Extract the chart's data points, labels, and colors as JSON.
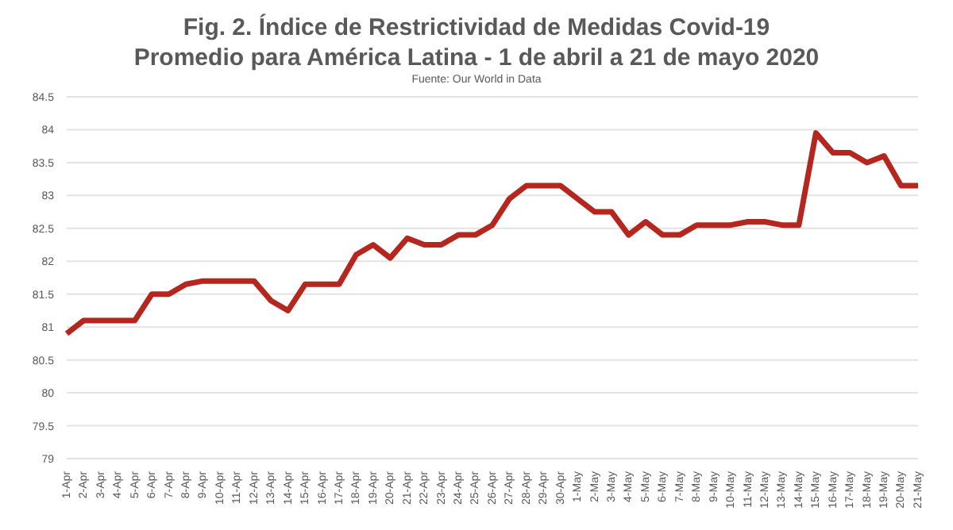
{
  "chart_data": {
    "type": "line",
    "title": "Fig. 2. Índice de Restrictividad de Medidas Covid-19",
    "subtitle": "Promedio para América Latina - 1 de abril a 21 de mayo 2020",
    "annotations": [
      "Fuente: Our World in Data"
    ],
    "categories": [
      "1-Apr",
      "2-Apr",
      "3-Apr",
      "4-Apr",
      "5-Apr",
      "6-Apr",
      "7-Apr",
      "8-Apr",
      "9-Apr",
      "10-Apr",
      "11-Apr",
      "12-Apr",
      "13-Apr",
      "14-Apr",
      "15-Apr",
      "16-Apr",
      "17-Apr",
      "18-Apr",
      "19-Apr",
      "20-Apr",
      "21-Apr",
      "22-Apr",
      "23-Apr",
      "24-Apr",
      "25-Apr",
      "26-Apr",
      "27-Apr",
      "28-Apr",
      "29-Apr",
      "30-Apr",
      "1-May",
      "2-May",
      "3-May",
      "4-May",
      "5-May",
      "6-May",
      "7-May",
      "8-May",
      "9-May",
      "10-May",
      "11-May",
      "12-May",
      "13-May",
      "14-May",
      "15-May",
      "16-May",
      "17-May",
      "18-May",
      "19-May",
      "20-May",
      "21-May"
    ],
    "series": [
      {
        "color": "#b5261e",
        "values": [
          80.9,
          81.1,
          81.1,
          81.1,
          81.1,
          81.5,
          81.5,
          81.65,
          81.7,
          81.7,
          81.7,
          81.7,
          81.4,
          81.25,
          81.65,
          81.65,
          81.65,
          82.1,
          82.25,
          82.05,
          82.35,
          82.25,
          82.25,
          82.4,
          82.4,
          82.55,
          82.95,
          83.15,
          83.15,
          83.15,
          82.95,
          82.75,
          82.75,
          82.4,
          82.6,
          82.4,
          82.4,
          82.55,
          82.55,
          82.55,
          82.6,
          82.6,
          82.55,
          82.55,
          83.95,
          83.65,
          83.65,
          83.5,
          83.6,
          83.15,
          83.15
        ]
      }
    ],
    "ylim": [
      79,
      84.5
    ],
    "yticks": [
      79,
      79.5,
      80,
      80.5,
      81,
      81.5,
      82,
      82.5,
      83,
      83.5,
      84,
      84.5
    ],
    "grid": "y",
    "legend": false,
    "marker": "none",
    "line_style": "solid"
  }
}
